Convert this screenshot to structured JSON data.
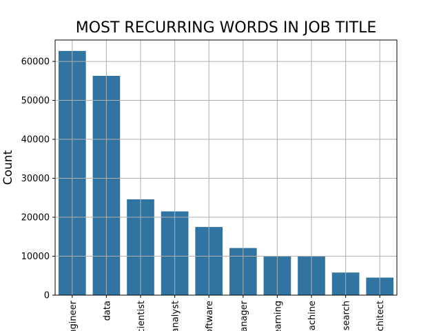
{
  "chart_data": {
    "type": "bar",
    "title": "MOST RECURRING WORDS IN JOB TITLE",
    "xlabel": "",
    "ylabel": "Count",
    "categories": [
      "engineer",
      "data",
      "scientist",
      "analyst",
      "software",
      "manager",
      "learning",
      "machine",
      "research",
      "architect"
    ],
    "values": [
      62700,
      56300,
      24600,
      21500,
      17500,
      12100,
      9900,
      9900,
      5800,
      4500
    ],
    "ylim": [
      0,
      65500
    ],
    "yticks": [
      0,
      10000,
      20000,
      30000,
      40000,
      50000,
      60000
    ],
    "grid": true,
    "bar_color": "#3274a1"
  }
}
